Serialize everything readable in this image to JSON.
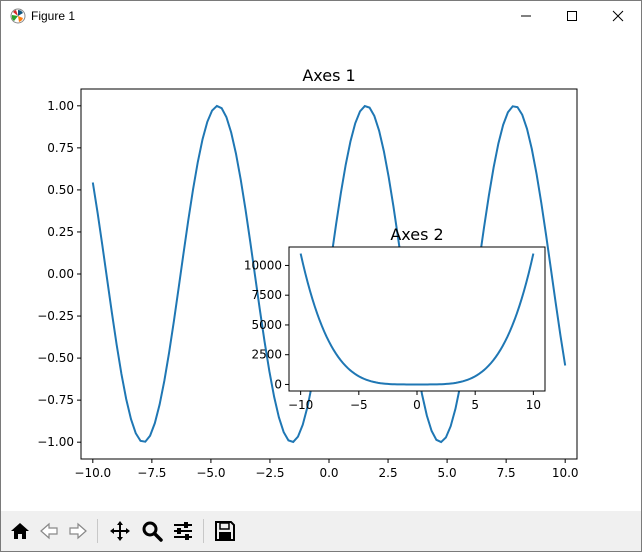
{
  "window": {
    "title": "Figure 1",
    "controls": [
      "minimize",
      "maximize",
      "close"
    ]
  },
  "icons": [
    "matplotlib-logo-icon",
    "minimize-icon",
    "maximize-icon",
    "close-icon",
    "home-icon",
    "back-arrow-icon",
    "forward-arrow-icon",
    "pan-icon",
    "zoom-icon",
    "configure-subplots-icon",
    "save-icon"
  ],
  "toolbar": {
    "buttons": [
      "home",
      "back",
      "forward",
      "pan",
      "zoom",
      "configure-subplots",
      "save"
    ]
  },
  "colors": {
    "line": "#1f77b4",
    "toolbar_bg": "#f0f0f0",
    "axes_edge": "#000000"
  },
  "chart_data": [
    {
      "title": "Axes 1",
      "type": "line",
      "function": "y = sin(x)",
      "x_range": [
        -10,
        10
      ],
      "xlim": [
        -10.5,
        10.5
      ],
      "ylim": [
        -1.1,
        1.1
      ],
      "xticks": [
        -10.0,
        -7.5,
        -5.0,
        -2.5,
        0.0,
        2.5,
        5.0,
        7.5,
        10.0
      ],
      "xtick_labels": [
        "−10.0",
        "−7.5",
        "−5.0",
        "−2.5",
        "0.0",
        "2.5",
        "5.0",
        "7.5",
        "10.0"
      ],
      "yticks": [
        -1.0,
        -0.75,
        -0.5,
        -0.25,
        0.0,
        0.25,
        0.5,
        0.75,
        1.0
      ],
      "ytick_labels": [
        "−1.00",
        "−0.75",
        "−0.50",
        "−0.25",
        "0.00",
        "0.25",
        "0.50",
        "0.75",
        "1.00"
      ],
      "series": [
        {
          "name": "",
          "x_start": -10,
          "x_end": 10,
          "samples": 100
        }
      ]
    },
    {
      "title": "Axes 2",
      "type": "line",
      "function": "y = x^4 + ... (steep at ends, ~0 near center)",
      "x_range": [
        -10,
        10
      ],
      "xlim": [
        -11.0,
        11.0
      ],
      "ylim": [
        -550,
        11550
      ],
      "xticks": [
        -10,
        -5,
        0,
        5,
        10
      ],
      "xtick_labels": [
        "−10",
        "−5",
        "0",
        "5",
        "10"
      ],
      "yticks": [
        0,
        2500,
        5000,
        7500,
        10000
      ],
      "ytick_labels": [
        "0",
        "2500",
        "5000",
        "7500",
        "10000"
      ],
      "series": [
        {
          "name": "",
          "x_start": -10,
          "x_end": 10,
          "samples": 100
        }
      ]
    }
  ]
}
